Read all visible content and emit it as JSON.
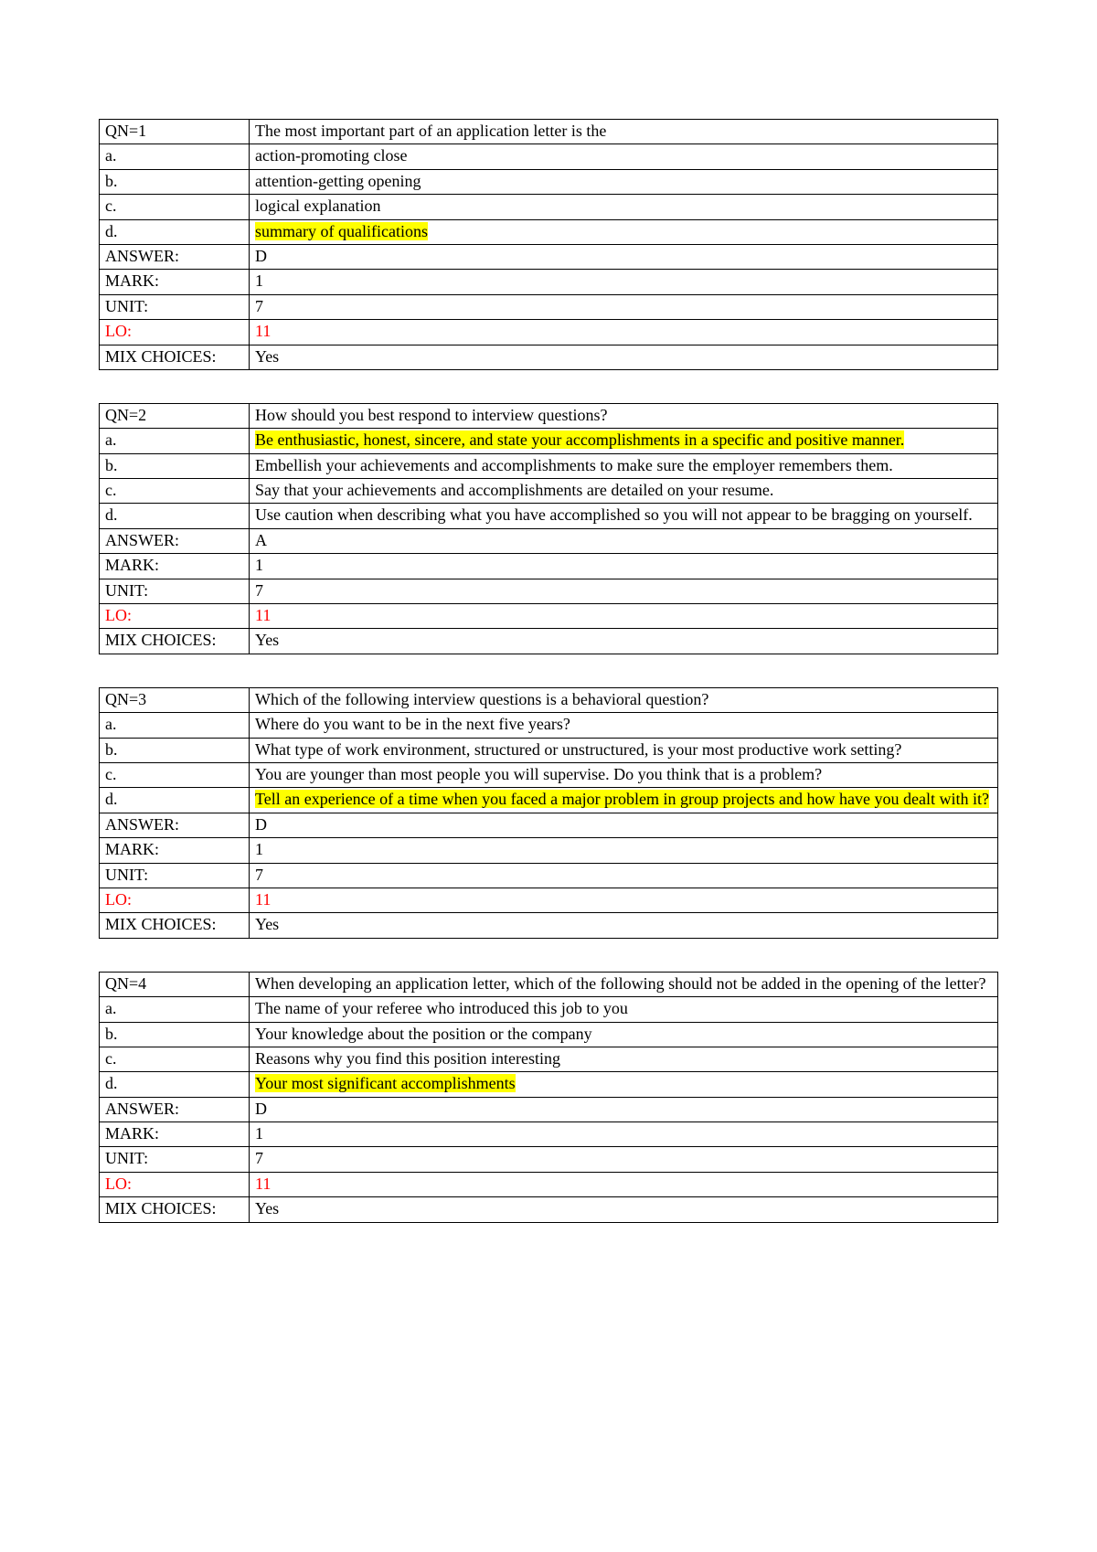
{
  "colors": {
    "highlight": "#ffff00",
    "red": "#ff0000",
    "border": "#000000",
    "background": "#ffffff"
  },
  "labels": {
    "qn_prefix": "QN=",
    "answer": "ANSWER:",
    "mark": "MARK:",
    "unit": "UNIT:",
    "lo": "LO:",
    "mix": "MIX CHOICES:",
    "a": "a.",
    "b": "b.",
    "c": "c.",
    "d": "d."
  },
  "questions": [
    {
      "qn": "1",
      "prompt": "The most important part of an application letter is the",
      "choices": {
        "a": {
          "text": "action-promoting close",
          "highlight": false
        },
        "b": {
          "text": "attention-getting opening",
          "highlight": false
        },
        "c": {
          "text": "logical explanation",
          "highlight": false
        },
        "d": {
          "text": "summary of qualifications",
          "highlight": true
        }
      },
      "answer": "D",
      "mark": "1",
      "unit": "7",
      "lo": "11",
      "mix": "Yes"
    },
    {
      "qn": "2",
      "prompt": "How should you best respond to interview questions?",
      "choices": {
        "a": {
          "text": "Be enthusiastic, honest, sincere, and state your accomplishments in a specific and positive manner.",
          "highlight": true
        },
        "b": {
          "text": "Embellish your achievements and accomplishments to make sure the employer remembers them.",
          "highlight": false
        },
        "c": {
          "text": "Say that your achievements and accomplishments are detailed on your resume.",
          "highlight": false
        },
        "d": {
          "text": "Use caution when describing what you have accomplished so you will not appear to be bragging on yourself.",
          "highlight": false
        }
      },
      "answer": "A",
      "mark": "1",
      "unit": "7",
      "lo": "11",
      "mix": "Yes"
    },
    {
      "qn": "3",
      "prompt": "Which of the following interview questions is a behavioral question?",
      "choices": {
        "a": {
          "text": "Where do you want to be in the next five years?",
          "highlight": false
        },
        "b": {
          "text": "What type of work environment, structured or unstructured, is your most productive work setting?",
          "highlight": false
        },
        "c": {
          "text": "You are younger than most people you will supervise. Do you think that is a problem?",
          "highlight": false
        },
        "d": {
          "text": "Tell an experience of a time when you faced a major problem in group projects and how have you dealt with it?",
          "highlight": true
        }
      },
      "answer": "D",
      "mark": "1",
      "unit": "7",
      "lo": "11",
      "mix": "Yes"
    },
    {
      "qn": "4",
      "prompt": "When developing an application letter, which of the following should not be added in the opening of the letter?",
      "choices": {
        "a": {
          "text": "The name of your referee who introduced this job to you",
          "highlight": false
        },
        "b": {
          "text": "Your knowledge about the position or the company",
          "highlight": false
        },
        "c": {
          "text": "Reasons why you find this position interesting",
          "highlight": false
        },
        "d": {
          "text": "Your most significant accomplishments",
          "highlight": true
        }
      },
      "answer": "D",
      "mark": "1",
      "unit": "7",
      "lo": "11",
      "mix": "Yes"
    }
  ]
}
